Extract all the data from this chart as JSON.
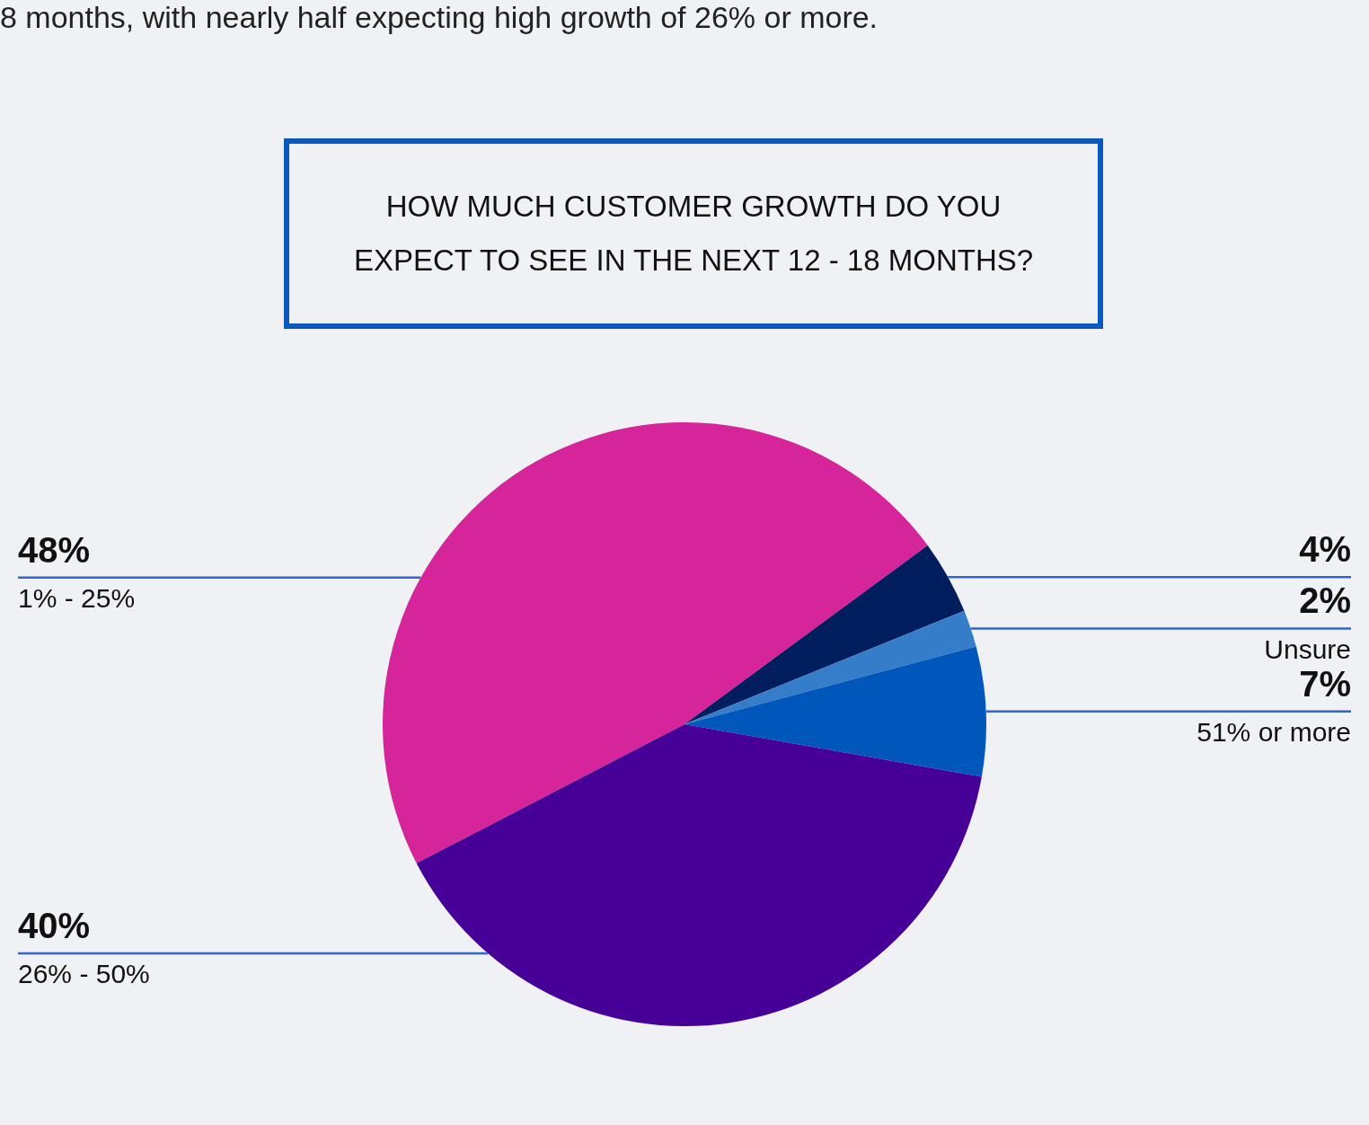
{
  "chart_data": {
    "type": "pie",
    "title": "HOW MUCH CUSTOMER GROWTH DO YOU EXPECT TO SEE IN THE NEXT 12 - 18 MONTHS?",
    "subtitle": "8 months, with nearly half expecting high growth of 26% or more.",
    "categories": [
      "1% - 25%",
      null,
      "Unsure",
      "51% or more",
      "26% - 50%"
    ],
    "values": [
      48,
      4,
      2,
      7,
      40
    ],
    "colors": [
      "#d6249a",
      "#001e5e",
      "#357dc8",
      "#0057bb",
      "#460098"
    ],
    "value_labels": [
      "48%",
      "4%",
      "2%",
      "7%",
      "40%"
    ],
    "legend": false
  }
}
